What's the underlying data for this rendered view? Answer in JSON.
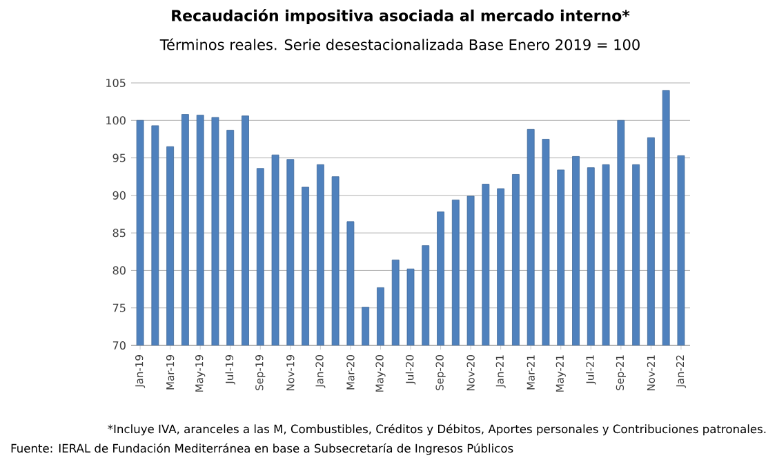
{
  "chart_data": {
    "type": "bar",
    "title": "Recaudación impositiva asociada al mercado interno*",
    "subtitle": "Términos reales. Serie desestacionalizada Base Enero 2019 = 100",
    "categories": [
      "Jan-19",
      null,
      "Mar-19",
      null,
      "May-19",
      null,
      "Jul-19",
      null,
      "Sep-19",
      null,
      "Nov-19",
      null,
      "Jan-20",
      null,
      "Mar-20",
      null,
      "May-20",
      null,
      "Jul-20",
      null,
      "Sep-20",
      null,
      "Nov-20",
      null,
      "Jan-21",
      null,
      "Mar-21",
      null,
      "May-21",
      null,
      "Jul-21",
      null,
      "Sep-21",
      null,
      "Nov-21",
      null,
      "Jan-22"
    ],
    "values": [
      100,
      99.3,
      96.5,
      100.8,
      100.7,
      100.4,
      98.7,
      100.6,
      93.6,
      95.4,
      94.8,
      91.1,
      94.1,
      92.5,
      86.5,
      75.1,
      77.7,
      81.4,
      80.2,
      83.3,
      87.8,
      89.4,
      89.9,
      91.5,
      90.9,
      92.8,
      98.8,
      97.5,
      93.4,
      95.2,
      93.7,
      94.1,
      100,
      94.1,
      97.7,
      104,
      95.3
    ],
    "color": "#4f81bd",
    "ylim": [
      70,
      105
    ],
    "yticks": [
      70,
      75,
      80,
      85,
      90,
      95,
      100,
      105
    ],
    "grid": "y",
    "annotations": [
      "*Incluye IVA, aranceles a las M, Combustibles, Créditos y Débitos, Aportes personales y Contribuciones patronales.",
      "Fuente: IERAL de Fundación Mediterránea en base a Subsecretaría de Ingresos Públicos"
    ]
  }
}
